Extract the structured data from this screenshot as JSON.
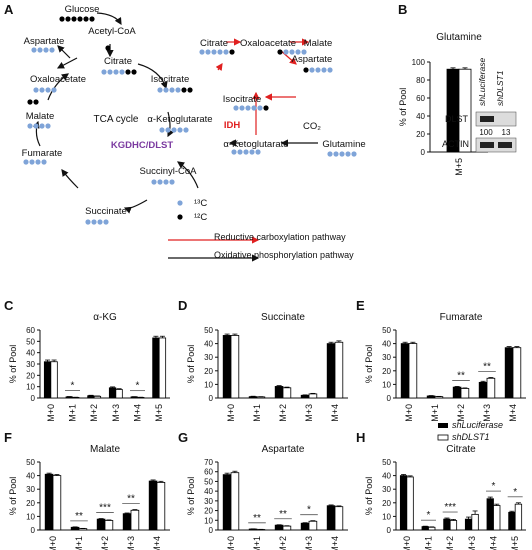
{
  "figure": {
    "panel_labels": {
      "A": "A",
      "B": "B",
      "C": "C",
      "D": "D",
      "E": "E",
      "F": "F",
      "G": "G",
      "H": "H"
    },
    "pathway": {
      "nodes": {
        "glucose": "Glucose",
        "acetyl_coa": "Acetyl-CoA",
        "citrate": "Citrate",
        "aspartate": "Aspartate",
        "oxaloacetate": "Oxaloacetate",
        "isocitrate": "Isocitrate",
        "tca": "TCA cycle",
        "malate": "Malate",
        "akg": "α-Ketoglutarate",
        "kgdhc": "KGDHC/DLST",
        "fumarate": "Fumarate",
        "succinyl": "Succinyl-CoA",
        "succinate": "Succinate",
        "r_citrate": "Citrate",
        "r_oxalo": "Oxaloacetate",
        "r_malate": "Malate",
        "r_aspartate": "Aspartate",
        "r_isocitrate": "Isocitrate",
        "idh": "IDH",
        "co2": "CO₂",
        "r_akg": "α-Ketoglutarate",
        "glutamine": "Glutamine"
      },
      "legend": {
        "c13": "¹³C",
        "c12": "¹²C",
        "red_path": "Reductive carboxylation pathway",
        "black_path": "Oxidative phosphorylation pathway"
      },
      "colors": {
        "c13": "#7fa4d8",
        "c12": "#000000",
        "red": "#e02020",
        "enzyme": "#7b3aa0"
      }
    },
    "western": {
      "dlst": "DLST",
      "actin": "ACTIN",
      "lane1": "shLuciferase",
      "lane2": "shDLST1",
      "val1": "100",
      "val2": "13"
    },
    "legend_shluc": "shLuciferase",
    "legend_shdlst": "shDLST1",
    "ylabel": "% of Pool"
  },
  "chart_data": [
    {
      "id": "B",
      "type": "bar",
      "title": "Glutamine",
      "ylabel": "% of Pool",
      "categories": [
        "M+5"
      ],
      "ylim": [
        0,
        100
      ],
      "yticks": [
        0,
        20,
        40,
        60,
        80,
        100
      ],
      "series": [
        {
          "name": "shLuciferase",
          "values": [
            92
          ]
        },
        {
          "name": "shDLST1",
          "values": [
            92
          ]
        }
      ],
      "errors": [
        [
          1.5
        ],
        [
          1.5
        ]
      ],
      "sig": []
    },
    {
      "id": "C",
      "type": "bar",
      "title": "α-KG",
      "ylabel": "% of Pool",
      "categories": [
        "M+0",
        "M+1",
        "M+2",
        "M+3",
        "M+4",
        "M+5"
      ],
      "ylim": [
        0,
        60
      ],
      "yticks": [
        0,
        10,
        20,
        30,
        40,
        50,
        60
      ],
      "series": [
        {
          "name": "shLuciferase",
          "values": [
            32,
            1,
            2,
            9,
            1,
            53
          ]
        },
        {
          "name": "shDLST1",
          "values": [
            32,
            0.5,
            1.5,
            7.5,
            0.5,
            53
          ]
        }
      ],
      "errors": [
        [
          1.5,
          0.3,
          0.4,
          0.8,
          0.2,
          1.5
        ],
        [
          1.5,
          0.2,
          0.3,
          0.7,
          0.2,
          1.5
        ]
      ],
      "sig": [
        {
          "i": 1,
          "s": "*"
        },
        {
          "i": 4,
          "s": "*"
        }
      ]
    },
    {
      "id": "D",
      "type": "bar",
      "title": "Succinate",
      "ylabel": "% of Pool",
      "categories": [
        "M+0",
        "M+1",
        "M+2",
        "M+3",
        "M+4"
      ],
      "ylim": [
        0,
        50
      ],
      "yticks": [
        0,
        10,
        20,
        30,
        40,
        50
      ],
      "series": [
        {
          "name": "shLuciferase",
          "values": [
            46,
            1,
            8.5,
            2,
            40
          ]
        },
        {
          "name": "shDLST1",
          "values": [
            46,
            0.8,
            7.5,
            3,
            41
          ]
        }
      ],
      "errors": [
        [
          1,
          0.3,
          0.6,
          0.3,
          1
        ],
        [
          1,
          0.2,
          0.5,
          0.4,
          1
        ]
      ],
      "sig": []
    },
    {
      "id": "E",
      "type": "bar",
      "title": "Fumarate",
      "ylabel": "% of Pool",
      "categories": [
        "M+0",
        "M+1",
        "M+2",
        "M+3",
        "M+4"
      ],
      "ylim": [
        0,
        50
      ],
      "yticks": [
        0,
        10,
        20,
        30,
        40,
        50
      ],
      "series": [
        {
          "name": "shLuciferase",
          "values": [
            40,
            1.5,
            8,
            11.5,
            37
          ]
        },
        {
          "name": "shDLST1",
          "values": [
            40,
            1,
            7,
            14.5,
            37
          ]
        }
      ],
      "errors": [
        [
          1,
          0.3,
          0.5,
          0.8,
          0.8
        ],
        [
          1,
          0.2,
          0.4,
          0.6,
          0.8
        ]
      ],
      "sig": [
        {
          "i": 2,
          "s": "**"
        },
        {
          "i": 3,
          "s": "**"
        }
      ]
    },
    {
      "id": "F",
      "type": "bar",
      "title": "Malate",
      "ylabel": "% of Pool",
      "categories": [
        "M+0",
        "M+1",
        "M+2",
        "M+3",
        "M+4"
      ],
      "ylim": [
        0,
        50
      ],
      "yticks": [
        0,
        10,
        20,
        30,
        40,
        50
      ],
      "series": [
        {
          "name": "shLuciferase",
          "values": [
            41,
            2,
            8,
            12,
            36
          ]
        },
        {
          "name": "shDLST1",
          "values": [
            40,
            1,
            7,
            14.5,
            35
          ]
        }
      ],
      "errors": [
        [
          0.8,
          0.3,
          0.4,
          0.5,
          0.8
        ],
        [
          0.8,
          0.2,
          0.4,
          0.5,
          0.8
        ]
      ],
      "sig": [
        {
          "i": 1,
          "s": "**"
        },
        {
          "i": 2,
          "s": "***"
        },
        {
          "i": 3,
          "s": "**"
        }
      ]
    },
    {
      "id": "G",
      "type": "bar",
      "title": "Aspartate",
      "ylabel": "% of Pool",
      "categories": [
        "M+0",
        "M+1",
        "M+2",
        "M+3",
        "M+4"
      ],
      "ylim": [
        0,
        70
      ],
      "yticks": [
        0,
        10,
        20,
        30,
        40,
        50,
        60,
        70
      ],
      "series": [
        {
          "name": "shLuciferase",
          "values": [
            57,
            1,
            5,
            7,
            25
          ]
        },
        {
          "name": "shDLST1",
          "values": [
            59,
            0.5,
            4,
            9,
            24
          ]
        }
      ],
      "errors": [
        [
          1.5,
          0.2,
          0.4,
          0.5,
          0.8
        ],
        [
          1.5,
          0.2,
          0.4,
          0.6,
          0.8
        ]
      ],
      "sig": [
        {
          "i": 1,
          "s": "**"
        },
        {
          "i": 2,
          "s": "**"
        },
        {
          "i": 3,
          "s": "*"
        }
      ]
    },
    {
      "id": "H",
      "type": "bar",
      "title": "Citrate",
      "ylabel": "% of Pool",
      "categories": [
        "M+0",
        "M+1",
        "M+2",
        "M+3",
        "M+4",
        "M+5"
      ],
      "ylim": [
        0,
        50
      ],
      "yticks": [
        0,
        10,
        20,
        30,
        40,
        50
      ],
      "series": [
        {
          "name": "shLuciferase",
          "values": [
            40,
            2.5,
            8,
            8,
            23,
            13
          ]
        },
        {
          "name": "shDLST1",
          "values": [
            39,
            2,
            7,
            11.5,
            18,
            19
          ]
        }
      ],
      "errors": [
        [
          0.8,
          0.3,
          0.8,
          1.5,
          1.2,
          0.8
        ],
        [
          0.8,
          0.3,
          0.8,
          2.5,
          1,
          1
        ]
      ],
      "sig": [
        {
          "i": 1,
          "s": "*"
        },
        {
          "i": 2,
          "s": "***"
        },
        {
          "i": 4,
          "s": "*"
        },
        {
          "i": 5,
          "s": "*"
        }
      ]
    }
  ]
}
